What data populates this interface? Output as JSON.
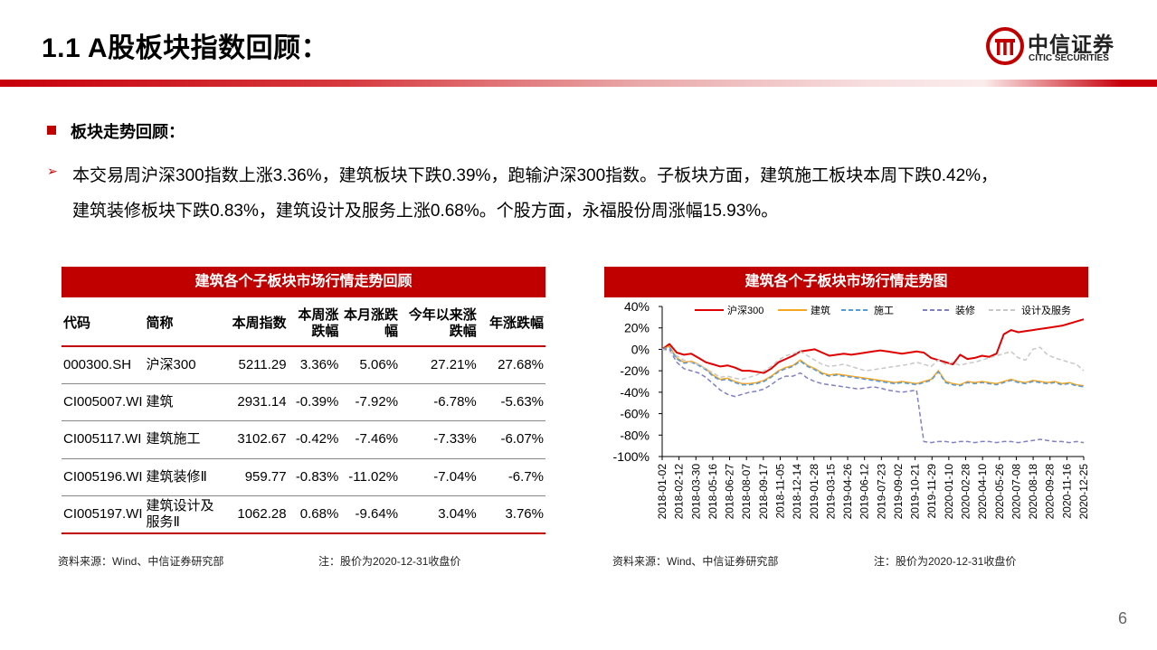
{
  "header": {
    "title": "1.1 A股板块指数回顾：",
    "logo_cn": "中信证券",
    "logo_en": "CITIC SECURITIES",
    "accent_color": "#c00000"
  },
  "section": {
    "heading": "板块走势回顾：",
    "paragraph_line1": "本交易周沪深300指数上涨3.36%，建筑板块下跌0.39%，跑输沪深300指数。子板块方面，建筑施工板块本周下跌0.42%，",
    "paragraph_line2": "建筑装修板块下跌0.83%，建筑设计及服务上涨0.68%。个股方面，永福股份周涨幅15.93%。"
  },
  "table": {
    "title": "建筑各个子板块市场行情走势回顾",
    "headers": [
      "代码",
      "简称",
      "本周指数",
      "本周涨跌幅",
      "本月涨跌幅",
      "今年以来涨跌幅",
      "年涨跌幅"
    ],
    "rows": [
      [
        "000300.SH",
        "沪深300",
        "5211.29",
        "3.36%",
        "5.06%",
        "27.21%",
        "27.68%"
      ],
      [
        "CI005007.WI",
        "建筑",
        "2931.14",
        "-0.39%",
        "-7.92%",
        "-6.78%",
        "-5.63%"
      ],
      [
        "CI005117.WI",
        "建筑施工",
        "3102.67",
        "-0.42%",
        "-7.46%",
        "-7.33%",
        "-6.07%"
      ],
      [
        "CI005196.WI",
        "建筑装修Ⅱ",
        "959.77",
        "-0.83%",
        "-11.02%",
        "-7.04%",
        "-6.7%"
      ],
      [
        "CI005197.WI",
        "建筑设计及服务Ⅱ",
        "1062.28",
        "0.68%",
        "-9.64%",
        "3.04%",
        "3.76%"
      ]
    ],
    "source": "资料来源：Wind、中信证券研究部",
    "note": "注：股价为2020-12-31收盘价"
  },
  "chart_panel": {
    "title": "建筑各个子板块市场行情走势图",
    "source": "资料来源：Wind、中信证券研究部",
    "note": "注：股价为2020-12-31收盘价"
  },
  "chart_data": {
    "type": "line",
    "title": "建筑各个子板块市场行情走势图",
    "ylim": [
      -100,
      40
    ],
    "yticks": [
      "40%",
      "20%",
      "0%",
      "-20%",
      "-40%",
      "-60%",
      "-80%",
      "-100%"
    ],
    "x_tick_labels": [
      "2018-01-02",
      "2018-02-12",
      "2018-03-30",
      "2018-05-16",
      "2018-06-27",
      "2018-08-07",
      "2018-09-17",
      "2018-11-05",
      "2018-12-14",
      "2019-01-28",
      "2019-03-15",
      "2019-04-26",
      "2019-06-12",
      "2019-07-23",
      "2019-09-02",
      "2019-10-21",
      "2019-11-29",
      "2020-01-10",
      "2020-02-28",
      "2020-04-10",
      "2020-05-26",
      "2020-07-08",
      "2020-08-18",
      "2020-09-28",
      "2020-11-16",
      "2020-12-25"
    ],
    "series": [
      {
        "name": "沪深300",
        "color": "#e00000",
        "style": "solid",
        "values": [
          0,
          5,
          -3,
          -5,
          -4,
          -8,
          -12,
          -14,
          -16,
          -15,
          -17,
          -20,
          -20,
          -21,
          -22,
          -18,
          -12,
          -9,
          -6,
          -2,
          -1,
          0,
          -3,
          -6,
          -5,
          -4,
          -5,
          -4,
          -3,
          -2,
          -1,
          -2,
          -3,
          -4,
          -3,
          -2,
          -3,
          -8,
          -10,
          -12,
          -14,
          -5,
          -9,
          -8,
          -6,
          -7,
          -4,
          14,
          18,
          16,
          17,
          18,
          19,
          20,
          21,
          22,
          24,
          26,
          28
        ]
      },
      {
        "name": "建筑",
        "color": "#f5a623",
        "style": "solid",
        "values": [
          0,
          3,
          -8,
          -12,
          -11,
          -14,
          -18,
          -24,
          -28,
          -27,
          -30,
          -32,
          -32,
          -31,
          -29,
          -25,
          -20,
          -17,
          -15,
          -10,
          -15,
          -18,
          -22,
          -24,
          -23,
          -24,
          -25,
          -26,
          -27,
          -28,
          -29,
          -30,
          -31,
          -30,
          -31,
          -32,
          -30,
          -28,
          -20,
          -30,
          -32,
          -33,
          -30,
          -31,
          -30,
          -31,
          -32,
          -30,
          -28,
          -30,
          -31,
          -29,
          -30,
          -31,
          -30,
          -32,
          -31,
          -33,
          -34
        ]
      },
      {
        "name": "施工",
        "color": "#5b9bd5",
        "style": "dashed",
        "values": [
          0,
          2,
          -9,
          -13,
          -12,
          -15,
          -19,
          -25,
          -29,
          -28,
          -31,
          -33,
          -33,
          -32,
          -30,
          -26,
          -21,
          -18,
          -16,
          -11,
          -16,
          -19,
          -23,
          -25,
          -24,
          -25,
          -26,
          -27,
          -28,
          -29,
          -30,
          -31,
          -32,
          -31,
          -32,
          -33,
          -31,
          -29,
          -21,
          -31,
          -33,
          -34,
          -31,
          -32,
          -31,
          -32,
          -33,
          -31,
          -29,
          -31,
          -32,
          -30,
          -31,
          -32,
          -31,
          -33,
          -32,
          -34,
          -35
        ]
      },
      {
        "name": "装修",
        "color": "#8080c8",
        "style": "dashed",
        "values": [
          0,
          0,
          -12,
          -18,
          -20,
          -22,
          -26,
          -32,
          -38,
          -42,
          -44,
          -42,
          -40,
          -39,
          -37,
          -33,
          -28,
          -25,
          -25,
          -22,
          -27,
          -30,
          -32,
          -33,
          -34,
          -35,
          -36,
          -37,
          -36,
          -35,
          -36,
          -38,
          -39,
          -40,
          -39,
          -38,
          -86,
          -87,
          -86,
          -86,
          -87,
          -86,
          -86,
          -87,
          -86,
          -86,
          -87,
          -86,
          -86,
          -87,
          -86,
          -85,
          -84,
          -85,
          -86,
          -86,
          -87,
          -86,
          -87
        ]
      },
      {
        "name": "设计及服务",
        "color": "#c8c8c8",
        "style": "dashed",
        "values": [
          0,
          -2,
          -6,
          -10,
          -12,
          -14,
          -18,
          -22,
          -26,
          -25,
          -27,
          -28,
          -26,
          -24,
          -20,
          -16,
          -10,
          -6,
          -4,
          -2,
          -6,
          -10,
          -14,
          -16,
          -15,
          -14,
          -16,
          -18,
          -20,
          -19,
          -18,
          -17,
          -16,
          -15,
          -14,
          -12,
          -14,
          -16,
          -10,
          -14,
          -12,
          -15,
          -13,
          -12,
          -10,
          -8,
          -6,
          -4,
          -2,
          -8,
          -10,
          0,
          2,
          -5,
          -8,
          -10,
          -12,
          -14,
          -20
        ]
      }
    ]
  },
  "page_number": "6"
}
